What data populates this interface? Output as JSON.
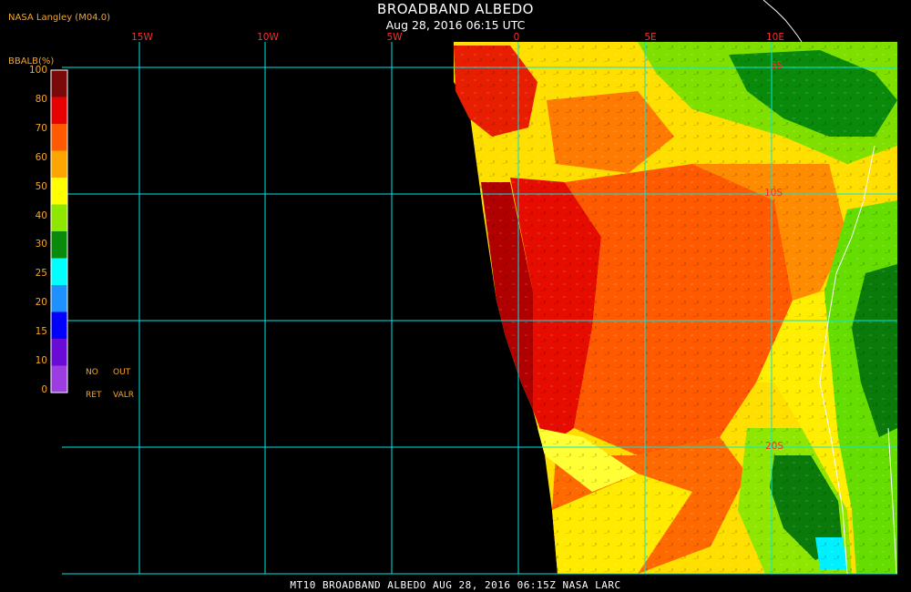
{
  "header": {
    "title": "BROADBAND ALBEDO",
    "subtitle": "Aug 28, 2016 06:15 UTC",
    "agency": "NASA Langley (M04.0)"
  },
  "map": {
    "lon_labels": [
      "15W",
      "10W",
      "5W",
      "0",
      "5E",
      "10E"
    ],
    "lat_labels": [
      "5S",
      "10S",
      "20S"
    ],
    "grid_color": "#00e6e6",
    "background": "#000000",
    "coast_color": "#ffffff"
  },
  "legend": {
    "title": "BBALB(%)",
    "ticks": [
      "100",
      "80",
      "70",
      "60",
      "50",
      "40",
      "30",
      "25",
      "20",
      "15",
      "10",
      "0"
    ],
    "colors": [
      "#7a0a0a",
      "#e60000",
      "#ff5a00",
      "#ffa500",
      "#ffff00",
      "#8fe600",
      "#0a8a0a",
      "#00ffff",
      "#1e90ff",
      "#0000ff",
      "#6a0ad6",
      "#9b3de0"
    ],
    "no_retrieval": [
      "NO",
      "RET"
    ],
    "out_valid": [
      "OUT",
      "VALR"
    ]
  },
  "footer": {
    "text": "MT10   BROADBAND ALBEDO   AUG 28, 2016 06:15Z   NASA LARC"
  }
}
